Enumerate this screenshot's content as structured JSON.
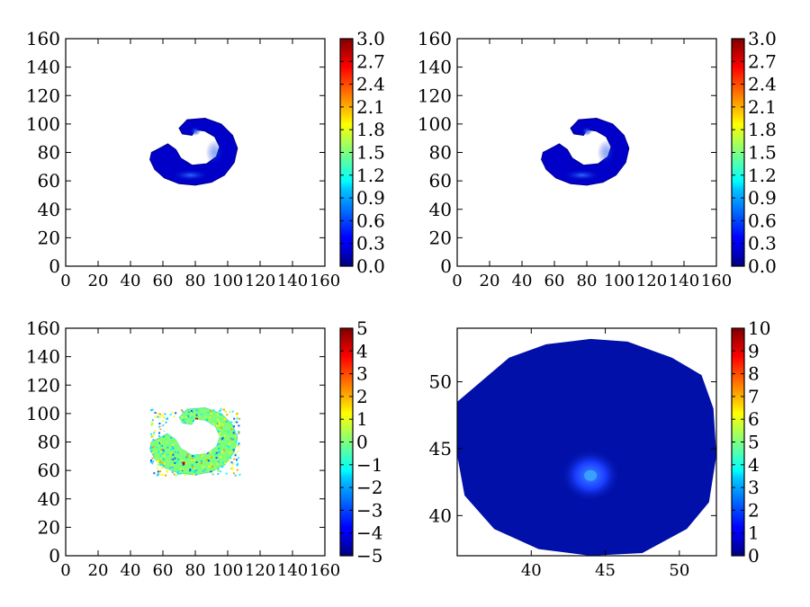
{
  "chart_data": [
    {
      "type": "heatmap",
      "title": "",
      "xlabel": "",
      "ylabel": "",
      "xlim": [
        0,
        160
      ],
      "ylim": [
        0,
        160
      ],
      "xticks": [
        "0",
        "20",
        "40",
        "60",
        "80",
        "100",
        "120",
        "140",
        "160"
      ],
      "yticks": [
        "0",
        "20",
        "40",
        "60",
        "80",
        "100",
        "120",
        "140",
        "160"
      ],
      "colorbar": {
        "min": 0.0,
        "max": 3.0,
        "ticks": [
          "0.0",
          "0.3",
          "0.6",
          "0.9",
          "1.2",
          "1.5",
          "1.8",
          "2.1",
          "2.4",
          "2.7",
          "3.0"
        ]
      },
      "colormap": "jet",
      "content": "crescent-shaped blob, values mostly ~0.1-0.4, brighter ridge near (75,65) and (80,95)",
      "blob_center": [
        80,
        80
      ]
    },
    {
      "type": "heatmap",
      "title": "",
      "xlabel": "",
      "ylabel": "",
      "xlim": [
        0,
        160
      ],
      "ylim": [
        0,
        160
      ],
      "xticks": [
        "0",
        "20",
        "40",
        "60",
        "80",
        "100",
        "120",
        "140",
        "160"
      ],
      "yticks": [
        "0",
        "20",
        "40",
        "60",
        "80",
        "100",
        "120",
        "140",
        "160"
      ],
      "colorbar": {
        "min": 0.0,
        "max": 3.0,
        "ticks": [
          "0.0",
          "0.3",
          "0.6",
          "0.9",
          "1.2",
          "1.5",
          "1.8",
          "2.1",
          "2.4",
          "2.7",
          "3.0"
        ]
      },
      "colormap": "jet",
      "content": "crescent-shaped blob nearly identical to panel 1",
      "blob_center": [
        80,
        80
      ]
    },
    {
      "type": "heatmap",
      "title": "",
      "xlabel": "",
      "ylabel": "",
      "xlim": [
        0,
        160
      ],
      "ylim": [
        0,
        160
      ],
      "xticks": [
        "0",
        "20",
        "40",
        "60",
        "80",
        "100",
        "120",
        "140",
        "160"
      ],
      "yticks": [
        "0",
        "20",
        "40",
        "60",
        "80",
        "100",
        "120",
        "140",
        "160"
      ],
      "colorbar": {
        "min": -5,
        "max": 5,
        "ticks": [
          "−5",
          "−4",
          "−3",
          "−2",
          "−1",
          "0",
          "1",
          "2",
          "3",
          "4",
          "5"
        ]
      },
      "colormap": "jet",
      "content": "residual noise in crescent region, mostly ~0 (green) with scattered outliers",
      "blob_center": [
        80,
        80
      ]
    },
    {
      "type": "heatmap",
      "title": "",
      "xlabel": "",
      "ylabel": "",
      "xlim": [
        35,
        52.5
      ],
      "ylim": [
        37,
        54
      ],
      "xticks": [
        "40",
        "45",
        "50"
      ],
      "yticks": [
        "40",
        "45",
        "50"
      ],
      "colorbar": {
        "min": 0,
        "max": 10,
        "ticks": [
          "0",
          "1",
          "2",
          "3",
          "4",
          "5",
          "6",
          "7",
          "8",
          "9",
          "10"
        ]
      },
      "colormap": "jet",
      "content": "zoomed polygonal region, values near 0-1, brighter spot near (44,43)",
      "peak": [
        44,
        43
      ]
    }
  ]
}
